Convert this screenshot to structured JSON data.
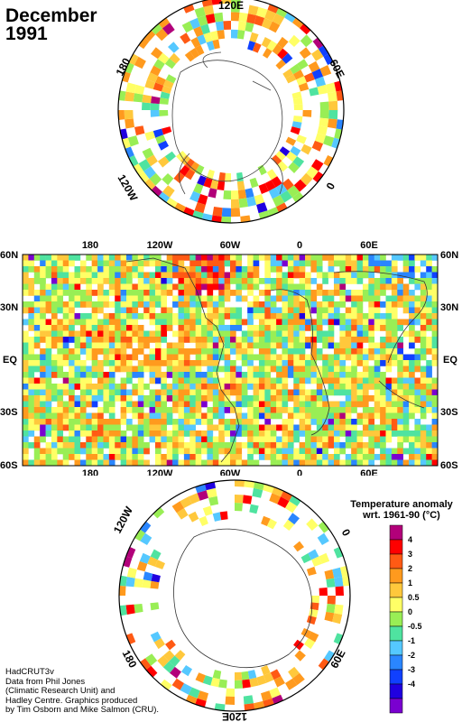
{
  "title": {
    "month": "December",
    "year": "1991"
  },
  "north_polar": {
    "labels": {
      "top": "120E",
      "upper_right": "60E",
      "right": "0",
      "lower_left": "120W",
      "upper_left": "180"
    }
  },
  "main_map": {
    "top_lon": [
      "180",
      "120W",
      "60W",
      "0",
      "60E"
    ],
    "bottom_lon": [
      "180",
      "120W",
      "60W",
      "0",
      "60E"
    ],
    "left_lat": [
      "60N",
      "30N",
      "EQ",
      "30S",
      "60S"
    ],
    "right_lat": [
      "60N",
      "30N",
      "EQ",
      "30S",
      "60S"
    ]
  },
  "south_polar": {
    "labels": {
      "upper_left": "120W",
      "upper_right": "0",
      "lower_left": "180",
      "lower_right": "60E",
      "bottom": "120E"
    }
  },
  "legend": {
    "title_line1": "Temperature anomaly",
    "title_line2": "wrt. 1961-90  (°C)",
    "ticks": [
      "4",
      "3",
      "2",
      "1",
      "0.5",
      "0",
      "-0.5",
      "-1",
      "-2",
      "-3",
      "-4"
    ],
    "colors": [
      "#b2007a",
      "#ff0000",
      "#ff5a14",
      "#ff9a1e",
      "#ffc83c",
      "#ffff66",
      "#99ee55",
      "#4fe3a0",
      "#55c8ff",
      "#2a86ff",
      "#1040ff",
      "#2000e0",
      "#7a00d0"
    ]
  },
  "credits": {
    "line1": "HadCRUT3v",
    "line2": "Data from Phil Jones",
    "line3": "(Climatic Research Unit) and",
    "line4": "Hadley Centre.  Graphics produced",
    "line5": "by Tim Osborn and Mike Salmon (CRU)."
  }
}
